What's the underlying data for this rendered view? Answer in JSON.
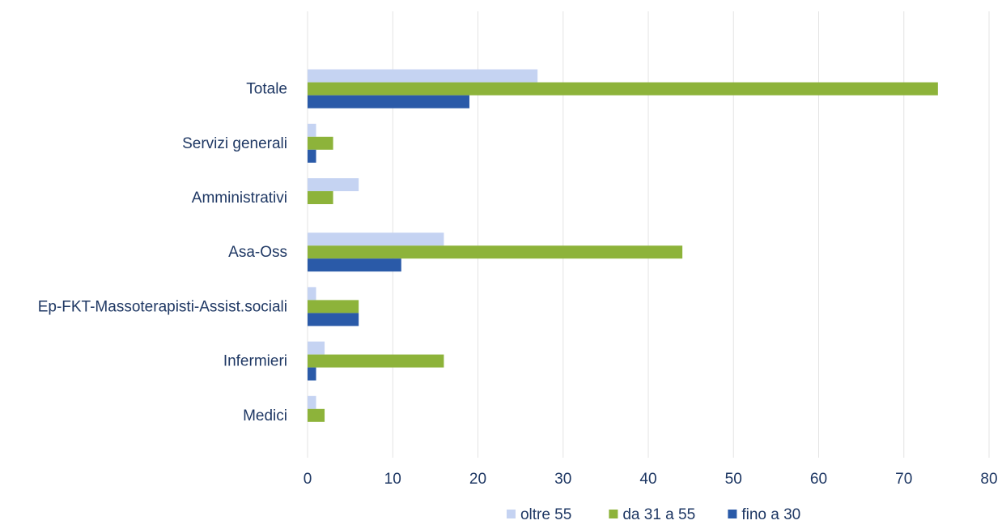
{
  "chart_data": {
    "type": "bar",
    "orientation": "horizontal",
    "categories": [
      "Totale",
      "Servizi generali",
      "Amministrativi",
      "Asa-Oss",
      "Ep-FKT-Massoterapisti-Assist.sociali",
      "Infermieri",
      "Medici"
    ],
    "series": [
      {
        "name": "oltre 55",
        "color": "#c5d3f2",
        "values": [
          27,
          1,
          6,
          16,
          1,
          2,
          1
        ]
      },
      {
        "name": "da 31 a 55",
        "color": "#8db33a",
        "values": [
          74,
          3,
          3,
          44,
          6,
          16,
          2
        ]
      },
      {
        "name": "fino a 30",
        "color": "#2a5aa8",
        "values": [
          19,
          1,
          0,
          11,
          6,
          1,
          0
        ]
      }
    ],
    "xlim": [
      0,
      80
    ],
    "xticks": [
      0,
      10,
      20,
      30,
      40,
      50,
      60,
      70,
      80
    ],
    "grid": true,
    "legend_position": "bottom"
  }
}
